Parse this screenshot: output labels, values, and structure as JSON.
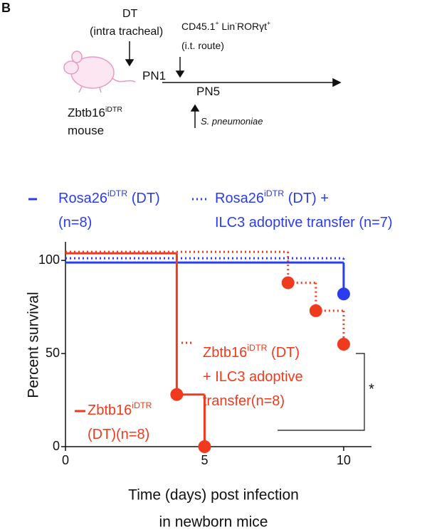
{
  "panel_label": "B",
  "schematic_texts": [
    [
      {
        "text": "DT"
      }
    ],
    [
      {
        "text": "(intra tracheal)"
      }
    ],
    [
      {
        "text": "CD45.1"
      },
      {
        "text": "+",
        "sup": true
      },
      {
        "text": " Lin"
      },
      {
        "text": "-",
        "sup": true
      },
      {
        "text": "RORγt"
      },
      {
        "text": "+",
        "sup": true
      }
    ],
    [
      {
        "text": "(i.t. route)"
      }
    ],
    [
      {
        "text": "PN1"
      }
    ],
    [
      {
        "text": "PN5"
      }
    ],
    [
      {
        "text": "S. pneumoniae"
      }
    ],
    [
      {
        "text": "Zbtb16"
      },
      {
        "text": "iDTR",
        "sup": true
      }
    ],
    [
      {
        "text": "mouse"
      }
    ]
  ],
  "chart_data": {
    "type": "line",
    "xlim": [
      0,
      11
    ],
    "xticks": [
      0,
      5,
      10
    ],
    "ylim": [
      0,
      110
    ],
    "yticks": [
      0,
      50,
      100
    ],
    "y_label": "Percent survival",
    "x_label": [
      "Time (days) post infection",
      "in newborn mice"
    ],
    "annotations": [
      {
        "text": "*"
      }
    ],
    "series": [
      {
        "label_lines": [
          [
            {
              "text": "Rosa26"
            },
            {
              "text": "iDTR",
              "sup": true
            },
            {
              "text": " (DT)"
            }
          ],
          [
            {
              "text": "(n=8)"
            }
          ]
        ],
        "color": "#2b3cf0",
        "line_style": "solid",
        "x": [
          0,
          10
        ],
        "values": [
          100,
          82
        ]
      },
      {
        "label_lines": [
          [
            {
              "text": "Rosa26"
            },
            {
              "text": "iDTR",
              "sup": true
            },
            {
              "text": " (DT) +"
            }
          ],
          [
            {
              "text": "ILC3 adoptive transfer (n=7)"
            }
          ]
        ],
        "color": "#2b3cf0",
        "line_style": "dotted",
        "x": [
          0,
          10
        ],
        "values": [
          100,
          100
        ]
      },
      {
        "label_lines": [
          [
            {
              "text": "Zbtb16"
            },
            {
              "text": "iDTR",
              "sup": true
            }
          ],
          [
            {
              "text": "(DT)(n=8)"
            }
          ]
        ],
        "color": "#f03a1e",
        "line_style": "solid",
        "x": [
          0,
          4,
          5
        ],
        "values": [
          100,
          28,
          0
        ]
      },
      {
        "label_lines": [
          [
            {
              "text": "Zbtb16"
            },
            {
              "text": "iDTR",
              "sup": true
            },
            {
              "text": " (DT)"
            }
          ],
          [
            {
              "text": "+ ILC3 adoptive"
            }
          ],
          [
            {
              "text": "transfer(n=8)"
            }
          ]
        ],
        "color": "#f03a1e",
        "line_style": "dotted",
        "x": [
          0,
          8,
          9,
          10
        ],
        "values": [
          100,
          88,
          73,
          55
        ]
      }
    ]
  }
}
